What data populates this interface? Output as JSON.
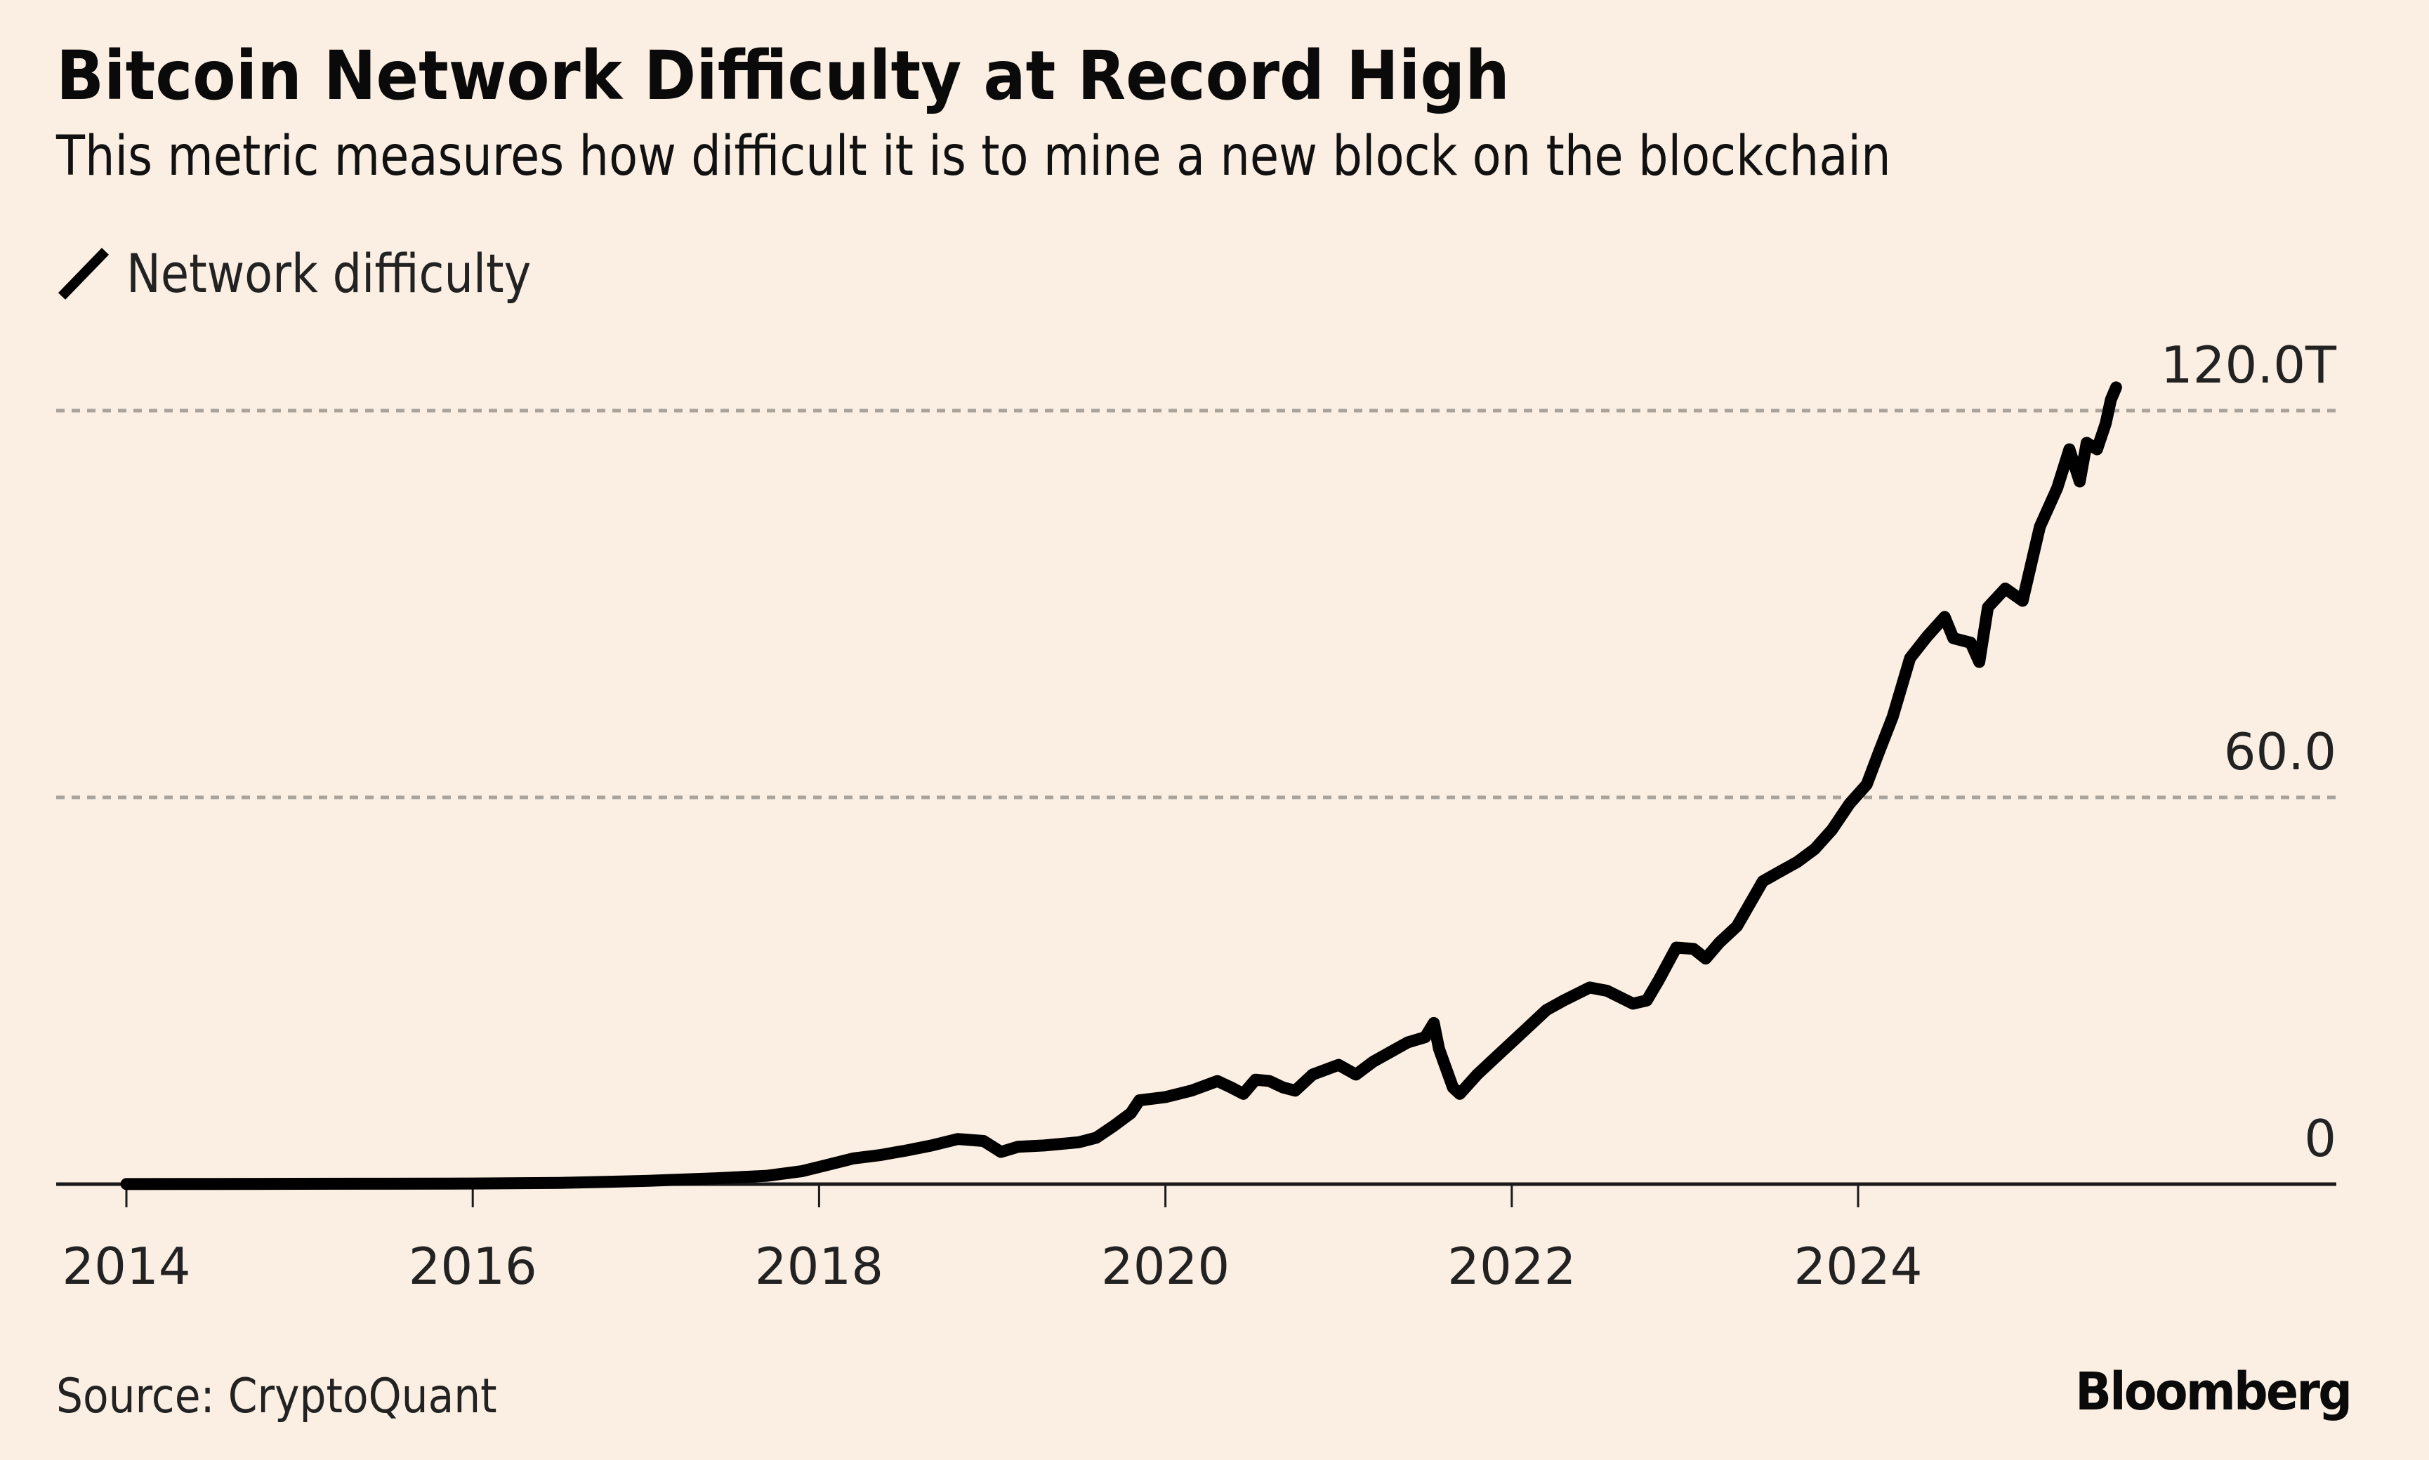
{
  "header": {
    "title": "Bitcoin Network Difficulty at Record High",
    "subtitle": "This metric measures how difficult it is to mine a new block on the blockchain"
  },
  "legend": {
    "items": [
      {
        "label": "Network difficulty",
        "icon": "line-swatch-icon",
        "color": "#000000"
      }
    ]
  },
  "footer": {
    "source": "Source: CryptoQuant",
    "brand": "Bloomberg"
  },
  "colors": {
    "background": "#fbeee2",
    "line": "#000000",
    "gridline": "#a9a39c",
    "axis": "#1a1a1a"
  },
  "chart_data": {
    "type": "line",
    "title": "Bitcoin Network Difficulty at Record High",
    "subtitle": "This metric measures how difficult it is to mine a new block on the blockchain",
    "xlabel": "",
    "ylabel": "",
    "unit": "T",
    "xlim": [
      2014,
      2026.8
    ],
    "ylim": [
      0,
      120
    ],
    "x_ticks": [
      2014,
      2016,
      2018,
      2020,
      2022,
      2024
    ],
    "x_tick_labels": [
      "2014",
      "2016",
      "2018",
      "2020",
      "2022",
      "2024"
    ],
    "y_ticks": [
      0,
      60,
      120
    ],
    "y_tick_labels": [
      "0",
      "60.0",
      "120.0T"
    ],
    "grid": "horizontal-dotted",
    "legend_position": "top-left",
    "series": [
      {
        "name": "Network difficulty",
        "x": [
          2014.0,
          2014.5,
          2015.0,
          2015.5,
          2016.0,
          2016.5,
          2017.0,
          2017.4,
          2017.7,
          2017.9,
          2018.05,
          2018.2,
          2018.35,
          2018.5,
          2018.65,
          2018.8,
          2018.95,
          2019.05,
          2019.15,
          2019.3,
          2019.5,
          2019.6,
          2019.7,
          2019.8,
          2019.85,
          2020.0,
          2020.15,
          2020.3,
          2020.38,
          2020.45,
          2020.52,
          2020.6,
          2020.68,
          2020.75,
          2020.85,
          2021.0,
          2021.1,
          2021.2,
          2021.3,
          2021.4,
          2021.5,
          2021.55,
          2021.58,
          2021.62,
          2021.66,
          2021.7,
          2021.8,
          2021.9,
          2022.0,
          2022.1,
          2022.2,
          2022.3,
          2022.45,
          2022.55,
          2022.7,
          2022.78,
          2022.85,
          2022.95,
          2023.05,
          2023.12,
          2023.2,
          2023.3,
          2023.45,
          2023.55,
          2023.65,
          2023.75,
          2023.85,
          2023.95,
          2024.05,
          2024.12,
          2024.2,
          2024.3,
          2024.4,
          2024.5,
          2024.55,
          2024.65,
          2024.7,
          2024.75,
          2024.85,
          2024.95,
          2025.05,
          2025.15,
          2025.22,
          2025.28,
          2025.32,
          2025.38,
          2025.43,
          2025.46,
          2025.49
        ],
        "values": [
          0.01,
          0.03,
          0.05,
          0.07,
          0.1,
          0.2,
          0.5,
          0.9,
          1.3,
          2.0,
          3.0,
          4.0,
          4.5,
          5.2,
          6.0,
          7.0,
          6.7,
          5.0,
          5.8,
          6.0,
          6.5,
          7.2,
          9.0,
          11.0,
          13.0,
          13.5,
          14.5,
          16.0,
          15.0,
          14.0,
          16.2,
          16.0,
          15.0,
          14.5,
          17.0,
          18.5,
          17.0,
          19.0,
          20.5,
          22.0,
          22.8,
          25.0,
          21.0,
          18.0,
          15.0,
          14.0,
          17.0,
          19.5,
          22.0,
          24.5,
          27.0,
          28.5,
          30.5,
          30.0,
          28.0,
          28.5,
          31.7,
          36.7,
          36.5,
          35.0,
          37.5,
          40.0,
          47.0,
          48.5,
          50.0,
          52.0,
          55.0,
          59.0,
          62.0,
          67.0,
          72.5,
          81.6,
          85.0,
          88.0,
          84.7,
          84.0,
          81.0,
          89.5,
          92.4,
          90.5,
          102.0,
          108.0,
          114.0,
          109.0,
          115.0,
          114.0,
          118.0,
          121.7,
          123.6
        ]
      }
    ]
  }
}
